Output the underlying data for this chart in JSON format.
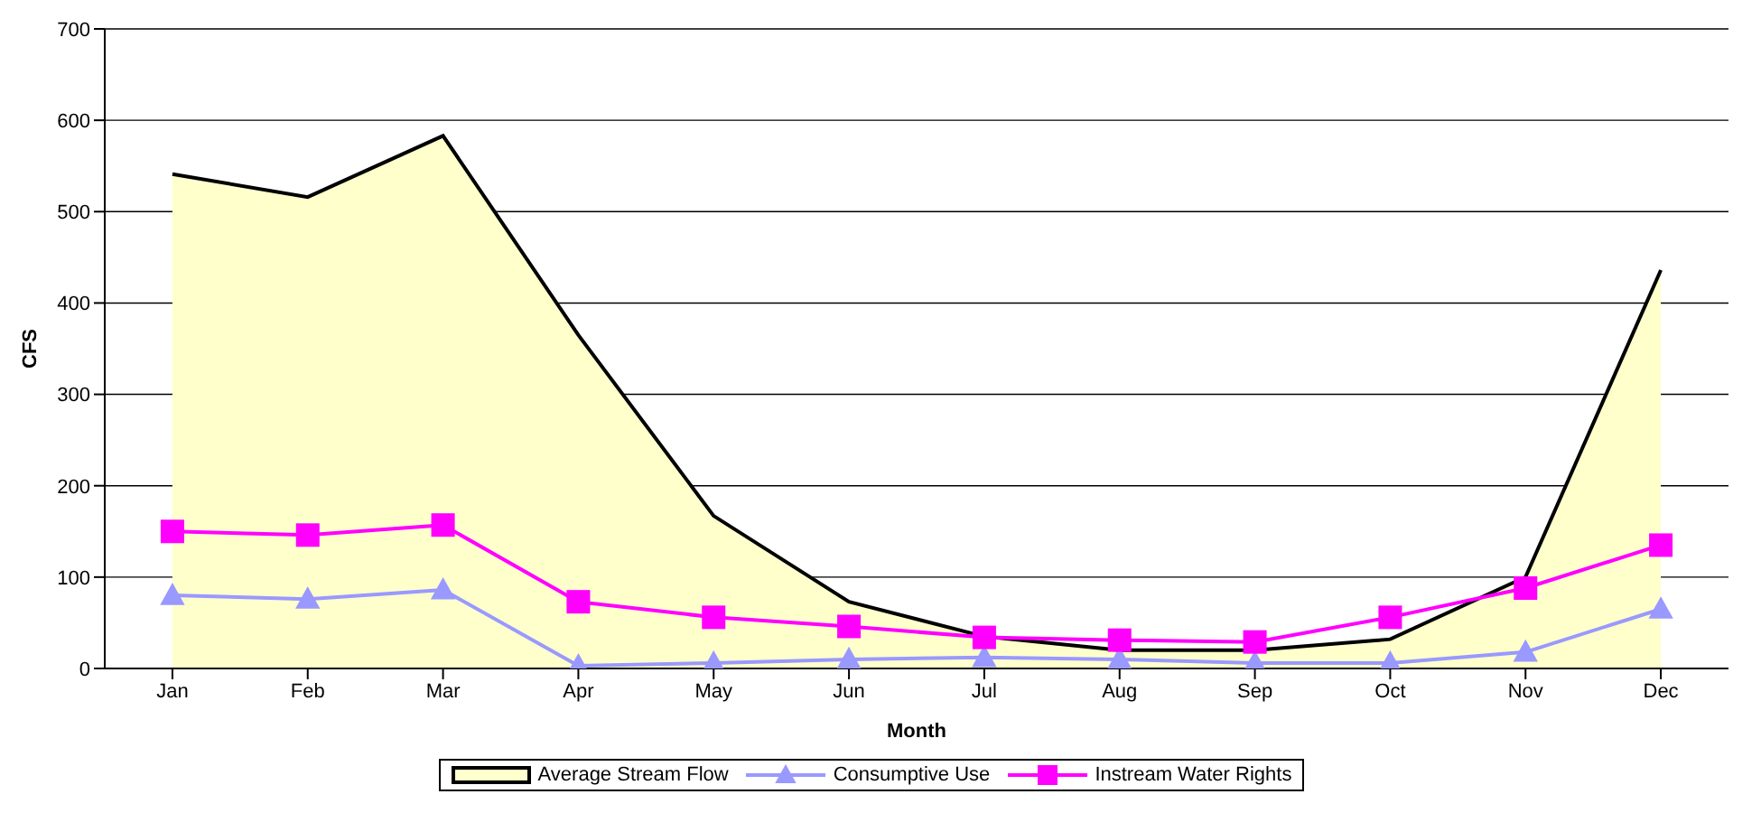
{
  "chart_data": {
    "type": "line",
    "xlabel": "Month",
    "ylabel": "CFS",
    "categories": [
      "Jan",
      "Feb",
      "Mar",
      "Apr",
      "May",
      "Jun",
      "Jul",
      "Aug",
      "Sep",
      "Oct",
      "Nov",
      "Dec"
    ],
    "series": [
      {
        "name": "Average Stream Flow",
        "type": "area",
        "color": "#ffffcc",
        "values": [
          541,
          516,
          583,
          365,
          167,
          73,
          35,
          20,
          20,
          32,
          100,
          436
        ]
      },
      {
        "name": "Consumptive Use",
        "color": "#9999ff",
        "marker": "triangle",
        "values": [
          80,
          76,
          86,
          3,
          6,
          10,
          12,
          10,
          6,
          6,
          18,
          65
        ]
      },
      {
        "name": "Instream Water Rights",
        "color": "#ff00ff",
        "marker": "square",
        "values": [
          150,
          146,
          157,
          73,
          56,
          46,
          34,
          31,
          29,
          56,
          88,
          135
        ]
      }
    ],
    "ylim": [
      0,
      700
    ],
    "yticks": [
      0,
      100,
      200,
      300,
      400,
      500,
      600,
      700
    ],
    "grid": "y",
    "legend": "bottom"
  }
}
